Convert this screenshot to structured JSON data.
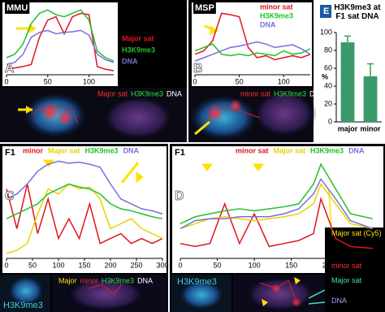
{
  "chart_data": [
    {
      "type": "line",
      "panel": "A",
      "tag": "MMU",
      "xlim": [
        0,
        130
      ],
      "xticks": [
        0,
        50,
        100
      ],
      "ylim": [
        0,
        100
      ],
      "x": [
        0,
        10,
        20,
        30,
        40,
        50,
        60,
        70,
        80,
        90,
        100,
        110,
        120,
        130
      ],
      "series": [
        {
          "name": "Major sat",
          "color": "#e0141e",
          "values": [
            8,
            10,
            12,
            15,
            55,
            80,
            85,
            60,
            85,
            90,
            88,
            12,
            8,
            6
          ]
        },
        {
          "name": "H3K9me3",
          "color": "#22c02a",
          "values": [
            25,
            30,
            45,
            75,
            90,
            95,
            88,
            85,
            90,
            95,
            80,
            35,
            25,
            20
          ]
        },
        {
          "name": "DNA",
          "color": "#7a6fd8",
          "values": [
            15,
            18,
            30,
            55,
            62,
            65,
            60,
            62,
            63,
            65,
            58,
            30,
            22,
            18
          ]
        }
      ],
      "image_labels": [
        {
          "text": "Major sat",
          "color": "#ff3030"
        },
        {
          "text": "H3K9me3",
          "color": "#30e040"
        },
        {
          "text": "DNA",
          "color": "#ffffff"
        }
      ]
    },
    {
      "type": "line",
      "panel": "B",
      "tag": "MSP",
      "xlim": [
        0,
        130
      ],
      "xticks": [
        0,
        50,
        100
      ],
      "ylim": [
        0,
        100
      ],
      "x": [
        0,
        10,
        20,
        30,
        40,
        50,
        60,
        70,
        80,
        90,
        100,
        110,
        120,
        130
      ],
      "series": [
        {
          "name": "minor sat",
          "color": "#e0141e",
          "values": [
            30,
            35,
            50,
            90,
            88,
            85,
            40,
            25,
            28,
            22,
            25,
            28,
            25,
            30
          ]
        },
        {
          "name": "H3K9me3",
          "color": "#22c02a",
          "values": [
            35,
            40,
            45,
            30,
            28,
            30,
            28,
            32,
            30,
            28,
            35,
            30,
            32,
            38
          ]
        },
        {
          "name": "DNA",
          "color": "#7a6fd8",
          "values": [
            20,
            25,
            30,
            35,
            40,
            42,
            45,
            48,
            45,
            40,
            42,
            44,
            38,
            30
          ]
        }
      ],
      "image_labels": [
        {
          "text": "minor sat",
          "color": "#ff3030"
        },
        {
          "text": "H3K9me3",
          "color": "#30e040"
        },
        {
          "text": "DNA",
          "color": "#ffffff"
        }
      ]
    },
    {
      "type": "bar",
      "panel": "E",
      "title": "H3K9me3 at F1 sat DNA",
      "y_label": "%",
      "categories": [
        "major",
        "minor"
      ],
      "values": [
        89,
        51
      ],
      "errors": [
        7,
        14
      ],
      "color": "#3a9a6a",
      "ylim": [
        0,
        100
      ],
      "yticks": [
        0,
        20,
        40,
        60,
        80,
        100
      ]
    },
    {
      "type": "line",
      "panel": "C",
      "tag": "F1",
      "xlim": [
        0,
        300
      ],
      "xticks": [
        0,
        50,
        100,
        150,
        200,
        250,
        300
      ],
      "ylim": [
        0,
        100
      ],
      "x": [
        0,
        20,
        40,
        60,
        80,
        100,
        120,
        140,
        160,
        180,
        200,
        220,
        240,
        260,
        280,
        300
      ],
      "series": [
        {
          "name": "minor",
          "color": "#e0141e",
          "values": [
            70,
            30,
            75,
            25,
            60,
            20,
            40,
            20,
            55,
            15,
            20,
            25,
            15,
            20,
            15,
            20
          ]
        },
        {
          "name": "Major sat",
          "color": "#e8d200",
          "values": [
            5,
            8,
            15,
            45,
            70,
            65,
            75,
            70,
            72,
            60,
            30,
            35,
            40,
            30,
            25,
            20
          ]
        },
        {
          "name": "H3K9me3",
          "color": "#22c02a",
          "values": [
            40,
            45,
            50,
            55,
            65,
            70,
            75,
            72,
            70,
            65,
            55,
            50,
            48,
            45,
            42,
            40
          ]
        },
        {
          "name": "DNA",
          "color": "#7a6fd8",
          "values": [
            60,
            65,
            75,
            88,
            95,
            98,
            96,
            97,
            95,
            92,
            75,
            60,
            55,
            50,
            48,
            45
          ]
        }
      ],
      "image_tag": "H3K9me3",
      "image_labels": [
        {
          "text": "Major",
          "color": "#ffe000"
        },
        {
          "text": "minor",
          "color": "#ff3030"
        },
        {
          "text": "H3K9me3",
          "color": "#30e040"
        },
        {
          "text": "DNA",
          "color": "#ffffff"
        }
      ]
    },
    {
      "type": "line",
      "panel": "D",
      "tag": "F1",
      "xlim": [
        0,
        270
      ],
      "xticks": [
        0,
        50,
        100,
        150,
        200,
        250
      ],
      "ylim": [
        0,
        100
      ],
      "x": [
        0,
        20,
        40,
        60,
        80,
        100,
        120,
        140,
        160,
        180,
        190,
        210,
        230,
        260
      ],
      "series": [
        {
          "name": "minor sat",
          "color": "#e0141e",
          "values": [
            15,
            12,
            15,
            55,
            15,
            45,
            12,
            15,
            18,
            25,
            60,
            20,
            12,
            10
          ]
        },
        {
          "name": "Major sat",
          "color": "#e8d200",
          "values": [
            30,
            35,
            40,
            42,
            40,
            38,
            40,
            42,
            45,
            55,
            75,
            55,
            35,
            30
          ]
        },
        {
          "name": "H3K9me3",
          "color": "#22c02a",
          "values": [
            35,
            42,
            45,
            48,
            50,
            48,
            50,
            52,
            55,
            75,
            95,
            70,
            45,
            40
          ]
        },
        {
          "name": "DNA",
          "color": "#7a6fd8",
          "values": [
            30,
            38,
            40,
            40,
            42,
            42,
            42,
            45,
            50,
            65,
            80,
            60,
            38,
            30
          ]
        }
      ],
      "image_tag": "H3K9me3",
      "image_labels": [
        {
          "text": "Major sat (Cy5)",
          "color": "#ffe000"
        },
        {
          "text": "minor sat",
          "color": "#ff3030"
        },
        {
          "text": "Major sat",
          "color": "#40e0c0"
        },
        {
          "text": "DNA",
          "color": "#9aa8ff"
        }
      ]
    }
  ]
}
